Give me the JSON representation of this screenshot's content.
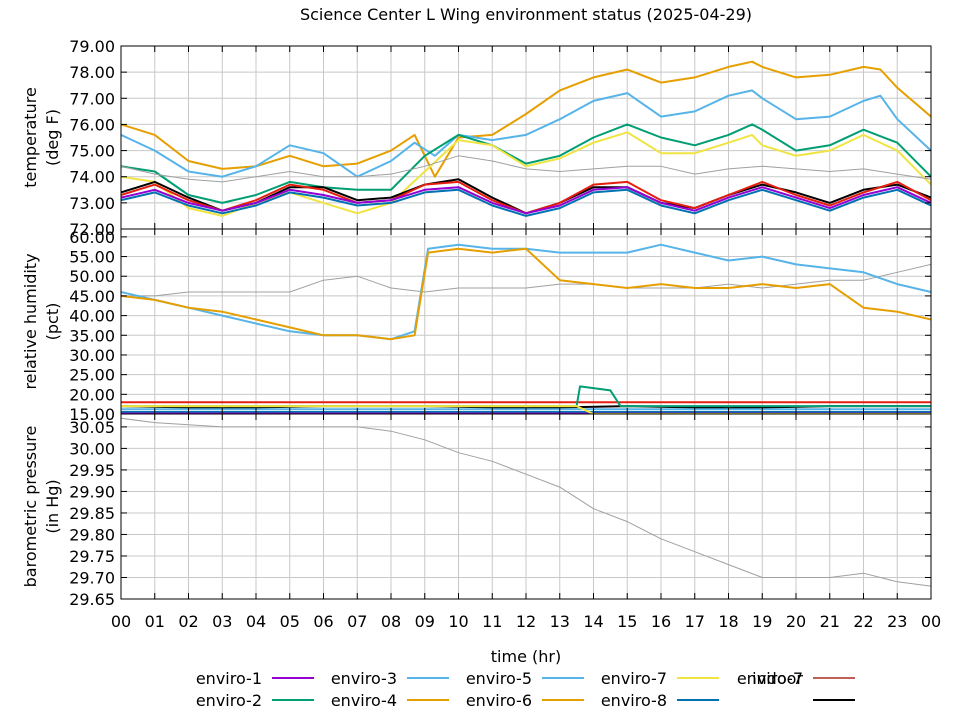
{
  "chart_data": {
    "type": "line",
    "title": "Science Center L Wing environment status (2025-04-29)",
    "xlabel": "time (hr)",
    "x_ticks": [
      "00",
      "01",
      "02",
      "03",
      "04",
      "05",
      "06",
      "07",
      "08",
      "09",
      "10",
      "11",
      "12",
      "13",
      "14",
      "15",
      "16",
      "17",
      "18",
      "19",
      "20",
      "21",
      "22",
      "23",
      "00"
    ],
    "xlim": [
      0,
      24
    ],
    "grid": true,
    "legend_position": "bottom",
    "legend": [
      {
        "name": "enviro-1",
        "color": "#9400d3"
      },
      {
        "name": "enviro-2",
        "color": "#009e73"
      },
      {
        "name": "enviro-3",
        "color": "#56b4e9"
      },
      {
        "name": "enviro-4",
        "color": "#e69f00"
      },
      {
        "name": "enviro-5",
        "color": "#56b4e9"
      },
      {
        "name": "enviro-6",
        "color": "#e69f00"
      },
      {
        "name": "enviro-7",
        "color": "#f0e442"
      },
      {
        "name": "enviro-8",
        "color": "#0072b2"
      },
      {
        "name": "enviro-7",
        "color": "#e51e10"
      },
      {
        "name": "",
        "color": "#000000"
      },
      {
        "name": "indoor",
        "color": "#a0a0a0"
      }
    ],
    "panels": [
      {
        "ylabel": "temperature\n(deg F)",
        "ylim": [
          72.0,
          79.0
        ],
        "y_ticks": [
          "72.00",
          "73.00",
          "74.00",
          "75.00",
          "76.00",
          "77.00",
          "78.00",
          "79.00"
        ],
        "series": [
          {
            "name": "enviro-6",
            "color": "#e69f00",
            "x": [
              0,
              1,
              2,
              3,
              4,
              5,
              6,
              7,
              8,
              8.7,
              9.3,
              10,
              11,
              12,
              13,
              14,
              15,
              16,
              17,
              18,
              18.7,
              19,
              20,
              21,
              22,
              22.5,
              23,
              24
            ],
            "y": [
              76.0,
              75.6,
              74.6,
              74.3,
              74.4,
              74.8,
              74.4,
              74.5,
              75.0,
              75.6,
              74.0,
              75.5,
              75.6,
              76.4,
              77.3,
              77.8,
              78.1,
              77.6,
              77.8,
              78.2,
              78.4,
              78.2,
              77.8,
              77.9,
              78.2,
              78.1,
              77.4,
              76.3
            ]
          },
          {
            "name": "enviro-5",
            "color": "#56b4e9",
            "x": [
              0,
              1,
              2,
              3,
              4,
              5,
              6,
              7,
              8,
              8.7,
              9.3,
              10,
              11,
              12,
              13,
              14,
              15,
              16,
              17,
              18,
              18.7,
              19,
              20,
              21,
              22,
              22.5,
              23,
              24
            ],
            "y": [
              75.6,
              75.0,
              74.2,
              74.0,
              74.4,
              75.2,
              74.9,
              74.0,
              74.6,
              75.3,
              74.8,
              75.6,
              75.4,
              75.6,
              76.2,
              76.9,
              77.2,
              76.3,
              76.5,
              77.1,
              77.3,
              77.0,
              76.2,
              76.3,
              76.9,
              77.1,
              76.2,
              75.0
            ]
          },
          {
            "name": "enviro-2",
            "color": "#009e73",
            "x": [
              0,
              1,
              2,
              3,
              4,
              5,
              6,
              7,
              8,
              9,
              10,
              11,
              12,
              13,
              14,
              15,
              16,
              17,
              18,
              18.7,
              19,
              20,
              21,
              22,
              23,
              24
            ],
            "y": [
              74.4,
              74.2,
              73.3,
              73.0,
              73.3,
              73.8,
              73.6,
              73.5,
              73.5,
              74.8,
              75.6,
              75.2,
              74.5,
              74.8,
              75.5,
              76.0,
              75.5,
              75.2,
              75.6,
              76.0,
              75.8,
              75.0,
              75.2,
              75.8,
              75.3,
              74.0
            ]
          },
          {
            "name": "enviro-7",
            "color": "#f0e442",
            "x": [
              0,
              1,
              2,
              3,
              4,
              5,
              6,
              7,
              8,
              9,
              10,
              11,
              12,
              13,
              14,
              15,
              16,
              17,
              18,
              18.7,
              19,
              20,
              21,
              22,
              23,
              24
            ],
            "y": [
              74.0,
              73.8,
              72.8,
              72.5,
              73.0,
              73.4,
              73.0,
              72.6,
              73.0,
              74.2,
              75.4,
              75.2,
              74.4,
              74.7,
              75.3,
              75.7,
              74.9,
              74.9,
              75.3,
              75.6,
              75.2,
              74.8,
              75.0,
              75.6,
              75.0,
              73.7
            ]
          },
          {
            "name": "indoor",
            "color": "#a0a0a0",
            "x": [
              0,
              1,
              2,
              3,
              4,
              5,
              6,
              7,
              8,
              9,
              10,
              11,
              12,
              13,
              14,
              15,
              16,
              17,
              18,
              19,
              20,
              21,
              22,
              23,
              24
            ],
            "y": [
              74.4,
              74.1,
              73.9,
              73.8,
              74.0,
              74.2,
              74.0,
              74.0,
              74.1,
              74.4,
              74.8,
              74.6,
              74.3,
              74.2,
              74.3,
              74.4,
              74.4,
              74.1,
              74.3,
              74.4,
              74.3,
              74.2,
              74.3,
              74.1,
              73.9
            ]
          },
          {
            "name": "enviro-8",
            "color": "#000000",
            "x": [
              0,
              1,
              2,
              3,
              4,
              5,
              6,
              7,
              8,
              9,
              10,
              11,
              12,
              13,
              14,
              15,
              16,
              17,
              18,
              19,
              20,
              21,
              22,
              23,
              24
            ],
            "y": [
              73.4,
              73.8,
              73.2,
              72.7,
              73.0,
              73.6,
              73.6,
              73.1,
              73.2,
              73.7,
              73.9,
              73.2,
              72.6,
              73.0,
              73.6,
              73.6,
              73.0,
              72.8,
              73.3,
              73.7,
              73.4,
              73.0,
              73.5,
              73.7,
              73.2
            ]
          },
          {
            "name": "enviro-7",
            "color": "#e51e10",
            "x": [
              0,
              1,
              2,
              3,
              4,
              5,
              6,
              7,
              8,
              9,
              10,
              11,
              12,
              13,
              14,
              15,
              16,
              17,
              18,
              19,
              20,
              21,
              22,
              23,
              24
            ],
            "y": [
              73.3,
              73.7,
              73.1,
              72.7,
              73.1,
              73.7,
              73.5,
              73.0,
              73.1,
              73.7,
              73.8,
              73.1,
              72.6,
              73.0,
              73.7,
              73.8,
              73.1,
              72.8,
              73.3,
              73.8,
              73.3,
              72.9,
              73.4,
              73.8,
              73.1
            ]
          },
          {
            "name": "enviro-1",
            "color": "#9400d3",
            "x": [
              0,
              1,
              2,
              3,
              4,
              5,
              6,
              7,
              8,
              9,
              10,
              11,
              12,
              13,
              14,
              15,
              16,
              17,
              18,
              19,
              20,
              21,
              22,
              23,
              24
            ],
            "y": [
              73.2,
              73.5,
              73.0,
              72.7,
              73.0,
              73.5,
              73.3,
              73.0,
              73.1,
              73.5,
              73.6,
              73.0,
              72.6,
              72.9,
              73.5,
              73.6,
              73.0,
              72.7,
              73.2,
              73.6,
              73.2,
              72.8,
              73.3,
              73.6,
              73.0
            ]
          },
          {
            "name": "enviro-8",
            "color": "#0072b2",
            "x": [
              0,
              1,
              2,
              3,
              4,
              5,
              6,
              7,
              8,
              9,
              10,
              11,
              12,
              13,
              14,
              15,
              16,
              17,
              18,
              19,
              20,
              21,
              22,
              23,
              24
            ],
            "y": [
              73.1,
              73.4,
              72.9,
              72.6,
              72.9,
              73.4,
              73.2,
              72.9,
              73.0,
              73.4,
              73.5,
              72.9,
              72.5,
              72.8,
              73.4,
              73.5,
              72.9,
              72.6,
              73.1,
              73.5,
              73.1,
              72.7,
              73.2,
              73.5,
              72.9
            ]
          }
        ]
      },
      {
        "ylabel": "relative humidity\n(pct)",
        "ylim": [
          15.0,
          62.0
        ],
        "y_ticks": [
          "15.00",
          "20.00",
          "25.00",
          "30.00",
          "35.00",
          "40.00",
          "45.00",
          "50.00",
          "55.00",
          "60.00"
        ],
        "series": [
          {
            "name": "indoor",
            "color": "#a0a0a0",
            "x": [
              0,
              1,
              2,
              3,
              4,
              5,
              6,
              7,
              8,
              9,
              10,
              11,
              12,
              13,
              14,
              15,
              16,
              17,
              18,
              19,
              20,
              21,
              22,
              23,
              24
            ],
            "y": [
              45,
              45,
              46,
              46,
              46,
              46,
              49,
              50,
              47,
              46,
              47,
              47,
              47,
              48,
              48,
              47,
              47,
              47,
              48,
              47,
              48,
              49,
              49,
              51,
              53
            ]
          },
          {
            "name": "enviro-5",
            "color": "#56b4e9",
            "x": [
              0,
              1,
              2,
              3,
              4,
              5,
              6,
              7,
              8,
              8.7,
              9.1,
              10,
              11,
              12,
              13,
              14,
              15,
              16,
              17,
              18,
              19,
              20,
              21,
              22,
              23,
              24
            ],
            "y": [
              46,
              44,
              42,
              40,
              38,
              36,
              35,
              35,
              34,
              36,
              57,
              58,
              57,
              57,
              56,
              56,
              56,
              58,
              56,
              54,
              55,
              53,
              52,
              51,
              48,
              46
            ]
          },
          {
            "name": "enviro-6",
            "color": "#e69f00",
            "x": [
              0,
              1,
              2,
              3,
              4,
              5,
              6,
              7,
              8,
              8.7,
              9.1,
              10,
              11,
              12,
              13,
              14,
              15,
              16,
              17,
              18,
              19,
              20,
              21,
              22,
              23,
              24
            ],
            "y": [
              45,
              44,
              42,
              41,
              39,
              37,
              35,
              35,
              34,
              35,
              56,
              57,
              56,
              57,
              49,
              48,
              47,
              48,
              47,
              47,
              48,
              47,
              48,
              42,
              41,
              39
            ]
          },
          {
            "name": "enviro-7",
            "color": "#e51e10",
            "x": [
              0,
              24
            ],
            "y": [
              18,
              18
            ]
          },
          {
            "name": "enviro-8",
            "color": "#000000",
            "x": [
              0,
              3,
              6,
              9,
              12,
              15,
              18,
              21,
              24
            ],
            "y": [
              17,
              16.5,
              17,
              17,
              16.5,
              17,
              16.5,
              17,
              17
            ]
          },
          {
            "name": "enviro-2",
            "color": "#009e73",
            "x": [
              0,
              13.5,
              13.6,
              14.5,
              14.8,
              24
            ],
            "y": [
              17,
              17,
              22,
              21,
              17,
              17
            ]
          },
          {
            "name": "enviro-3",
            "color": "#56b4e9",
            "x": [
              0,
              24
            ],
            "y": [
              16.2,
              16.2
            ]
          },
          {
            "name": "enviro-8",
            "color": "#0072b2",
            "x": [
              0,
              24
            ],
            "y": [
              15.5,
              15.5
            ]
          },
          {
            "name": "enviro-1",
            "color": "#9400d3",
            "x": [
              0,
              24
            ],
            "y": [
              15.1,
              15.1
            ]
          },
          {
            "name": "enviro-7",
            "color": "#f0e442",
            "x": [
              0,
              13.5,
              14,
              24
            ],
            "y": [
              17,
              17,
              15,
              15
            ]
          }
        ]
      },
      {
        "ylabel": "barometric pressure\n(in Hg)",
        "ylim": [
          29.65,
          30.08
        ],
        "y_ticks": [
          "29.65",
          "29.70",
          "29.75",
          "29.80",
          "29.85",
          "29.90",
          "29.95",
          "30.00",
          "30.05"
        ],
        "series": [
          {
            "name": "indoor",
            "color": "#a0a0a0",
            "x": [
              0,
              1,
              2,
              3,
              4,
              5,
              6,
              7,
              8,
              9,
              10,
              11,
              12,
              13,
              14,
              15,
              16,
              17,
              18,
              19,
              20,
              21,
              22,
              23,
              24
            ],
            "y": [
              30.07,
              30.06,
              30.055,
              30.05,
              30.05,
              30.05,
              30.05,
              30.05,
              30.04,
              30.02,
              29.99,
              29.97,
              29.94,
              29.91,
              29.86,
              29.83,
              29.79,
              29.76,
              29.73,
              29.7,
              29.7,
              29.7,
              29.71,
              29.69,
              29.68
            ]
          }
        ]
      }
    ]
  }
}
